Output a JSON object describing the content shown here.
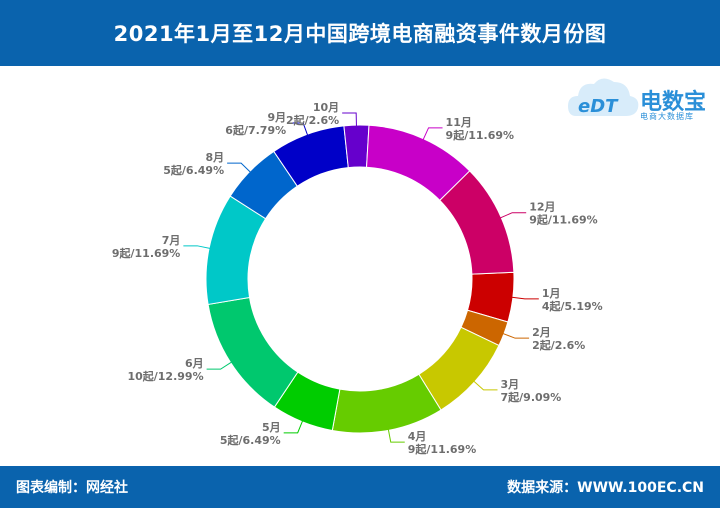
{
  "header": {
    "title": "2021年1月至12月中国跨境电商融资事件数月份图"
  },
  "footer": {
    "editor": "图表编制：网经社",
    "source": "数据来源：WWW.100EC.CN"
  },
  "logo": {
    "name": "电数宝",
    "badge": "eDT",
    "subtitle": "电商大数据库",
    "icon": "cloud-icon"
  },
  "chart_data": {
    "type": "pie",
    "style": "donut",
    "title": "2021年1月至12月中国跨境电商融资事件数月份图",
    "categories": [
      "1月",
      "2月",
      "3月",
      "4月",
      "5月",
      "6月",
      "7月",
      "8月",
      "9月",
      "10月",
      "11月",
      "12月"
    ],
    "values": [
      4,
      2,
      7,
      9,
      5,
      10,
      9,
      5,
      6,
      2,
      9,
      9
    ],
    "labels": [
      "4起/5.19%",
      "2起/2.6%",
      "7起/9.09%",
      "9起/11.69%",
      "5起/6.49%",
      "10起/12.99%",
      "9起/11.69%",
      "5起/6.49%",
      "6起/7.79%",
      "2起/2.6%",
      "9起/11.69%",
      "9起/11.69%"
    ],
    "colors": [
      "#cc0000",
      "#cc6600",
      "#c8c800",
      "#66cc00",
      "#00cc00",
      "#00c86e",
      "#00c8c8",
      "#0066cc",
      "#0000c8",
      "#6600cc",
      "#c800c8",
      "#cc0066"
    ]
  }
}
